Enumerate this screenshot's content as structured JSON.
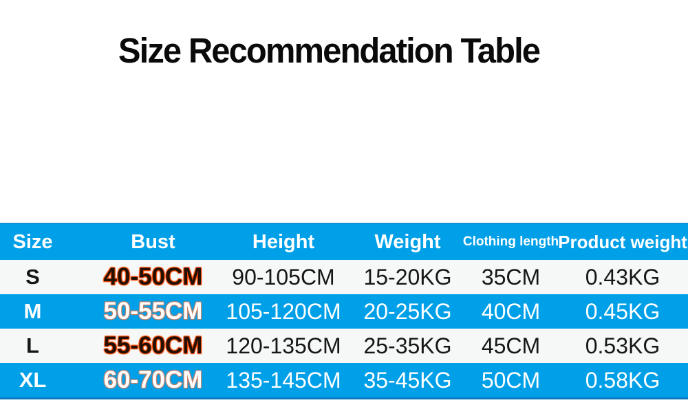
{
  "title": "Size Recommendation Table",
  "colors": {
    "accent_blue": "#00A0E9",
    "light_row": "#f6f7f7",
    "bust_outline_orange": "#ff4800",
    "bust_outline_soft": "#cd7d5f",
    "bottom_edge": "#0e7cc2",
    "text_dark": "#161616",
    "text_light": "#ffffff"
  },
  "table": {
    "columns": [
      {
        "key": "size",
        "label": "Size"
      },
      {
        "key": "bust",
        "label": "Bust"
      },
      {
        "key": "height",
        "label": "Height"
      },
      {
        "key": "weight",
        "label": "Weight"
      },
      {
        "key": "clothing_length",
        "label": "Clothing length"
      },
      {
        "key": "product_weight",
        "label": "Product weight"
      }
    ],
    "rows": [
      {
        "size": "S",
        "bust": "40-50CM",
        "height": "90-105CM",
        "weight": "15-20KG",
        "clothing_length": "35CM",
        "product_weight": "0.43KG"
      },
      {
        "size": "M",
        "bust": "50-55CM",
        "height": "105-120CM",
        "weight": "20-25KG",
        "clothing_length": "40CM",
        "product_weight": "0.45KG"
      },
      {
        "size": "L",
        "bust": "55-60CM",
        "height": "120-135CM",
        "weight": "25-35KG",
        "clothing_length": "45CM",
        "product_weight": "0.53KG"
      },
      {
        "size": "XL",
        "bust": "60-70CM",
        "height": "135-145CM",
        "weight": "35-45KG",
        "clothing_length": "50CM",
        "product_weight": "0.58KG"
      }
    ]
  }
}
